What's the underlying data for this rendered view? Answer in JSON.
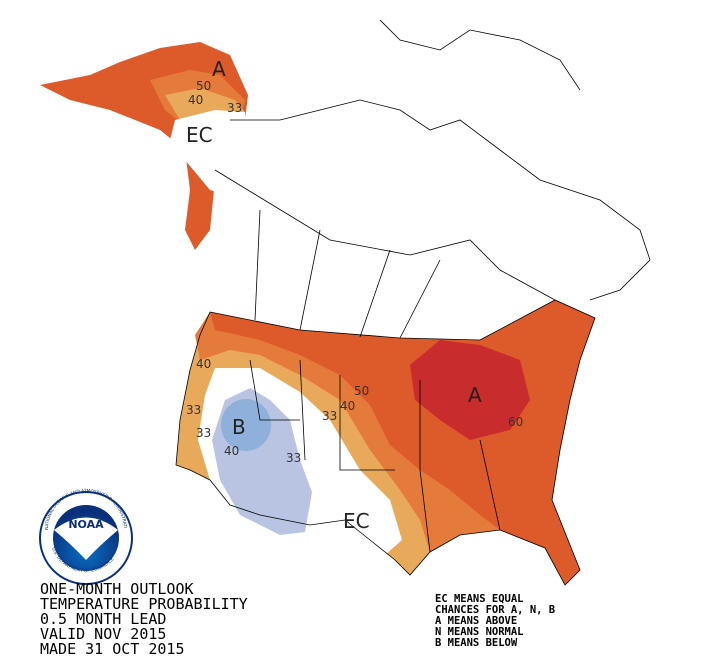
{
  "map_labels": {
    "alaska": [
      "A",
      "50",
      "40",
      "33",
      "EC"
    ],
    "west": [
      "40",
      "33",
      "33",
      "B",
      "40",
      "33"
    ],
    "central": [
      "50",
      "40",
      "33"
    ],
    "east": [
      "A",
      "60"
    ],
    "south": [
      "EC"
    ]
  },
  "logo": {
    "text": "NOAA",
    "ring_top": "NATIONAL OCEANIC AND ATMOSPHERIC ADMINISTRATION",
    "ring_bottom": "U.S. DEPARTMENT OF COMMERCE"
  },
  "title_lines": [
    "ONE-MONTH OUTLOOK",
    "TEMPERATURE PROBABILITY",
    "0.5 MONTH LEAD",
    "VALID NOV 2015",
    "MADE 31 OCT 2015"
  ],
  "legend_lines": [
    "EC MEANS EQUAL",
    "CHANCES FOR A, N, B",
    "A MEANS ABOVE",
    "N MEANS NORMAL",
    "B MEANS BELOW"
  ]
}
